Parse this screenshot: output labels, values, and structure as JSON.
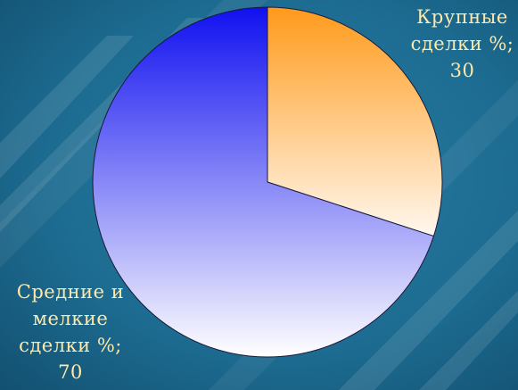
{
  "colors": {
    "background": "#1a5f82",
    "label_text": "#ffe8a8",
    "large_slice_top": "#ff9a1a",
    "large_slice_bottom": "#fff8f0",
    "small_slice_top": "#1010f0",
    "small_slice_bottom": "#ffffff"
  },
  "chart_data": {
    "type": "pie",
    "title": "",
    "slices": [
      {
        "label_lines": [
          "Крупные",
          "сделки %;",
          "30"
        ],
        "value": 30
      },
      {
        "label_lines": [
          "Средние и",
          "мелкие",
          "сделки %;",
          "70"
        ],
        "value": 70
      }
    ],
    "start_angle_deg": 0,
    "direction": "clockwise",
    "legend": "none"
  }
}
